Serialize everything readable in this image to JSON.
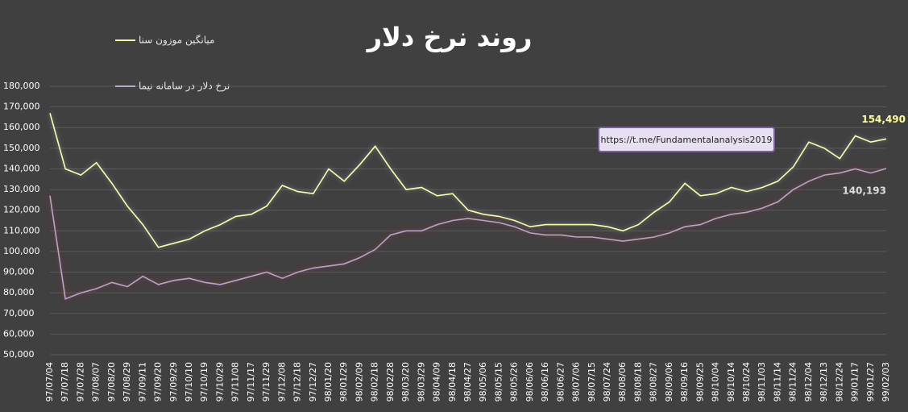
{
  "chart_data": {
    "type": "line",
    "title": "روند نرخ دلار",
    "annotation": "https://t.me/Fundamentalanalysis2019",
    "categories": [
      "97/07/04",
      "97/07/18",
      "97/07/28",
      "97/08/07",
      "97/08/20",
      "97/08/29",
      "97/09/11",
      "97/09/20",
      "97/09/29",
      "97/10/10",
      "97/10/19",
      "97/10/29",
      "97/11/08",
      "97/11/17",
      "97/11/29",
      "97/12/08",
      "97/12/18",
      "97/12/27",
      "98/01/20",
      "98/01/29",
      "98/02/09",
      "98/02/18",
      "98/02/28",
      "98/03/20",
      "98/03/29",
      "98/04/09",
      "98/04/18",
      "98/04/27",
      "98/05/06",
      "98/05/15",
      "98/05/26",
      "98/06/06",
      "98/06/16",
      "98/06/27",
      "98/07/06",
      "98/07/15",
      "98/07/24",
      "98/08/06",
      "98/08/18",
      "98/08/27",
      "98/09/06",
      "98/09/16",
      "98/09/25",
      "98/10/04",
      "98/10/14",
      "98/10/24",
      "98/11/03",
      "98/11/14",
      "98/11/24",
      "98/12/04",
      "98/12/13",
      "98/12/24",
      "99/01/17",
      "99/01/27",
      "99/02/03"
    ],
    "series": [
      {
        "name": "میانگین موزون سنا",
        "color": "#ffff99",
        "values": [
          167000,
          140000,
          137000,
          143000,
          133000,
          122000,
          113000,
          102000,
          104000,
          106000,
          110000,
          113000,
          117000,
          118000,
          122000,
          132000,
          129000,
          128000,
          140000,
          134000,
          142000,
          151000,
          140000,
          130000,
          131000,
          127000,
          128000,
          120000,
          118000,
          117000,
          115000,
          112000,
          113000,
          113000,
          113000,
          113000,
          112000,
          110000,
          113000,
          119000,
          124000,
          133000,
          127000,
          128000,
          131000,
          129000,
          131000,
          134000,
          141000,
          153000,
          150000,
          145000,
          156000,
          153000,
          154490
        ],
        "value_labels": [
          null,
          null,
          null,
          null,
          null,
          null,
          null,
          null,
          null,
          null,
          null,
          null,
          null,
          null,
          null,
          null,
          null,
          null,
          null,
          null,
          null,
          null,
          null,
          null,
          null,
          null,
          null,
          null,
          null,
          null,
          null,
          null,
          null,
          null,
          null,
          null,
          null,
          null,
          null,
          null,
          null,
          null,
          null,
          null,
          null,
          null,
          null,
          null,
          null,
          null,
          null,
          null,
          null,
          null,
          "154,490"
        ]
      },
      {
        "name": "نرخ دلار در سامانه نیما",
        "color": "#b9a3c9",
        "values": [
          127000,
          77000,
          80000,
          82000,
          85000,
          83000,
          88000,
          84000,
          86000,
          87000,
          85000,
          84000,
          86000,
          88000,
          90000,
          87000,
          90000,
          92000,
          93000,
          94000,
          97000,
          101000,
          108000,
          110000,
          110000,
          113000,
          115000,
          116000,
          115000,
          114000,
          112000,
          109000,
          108000,
          108000,
          107000,
          107000,
          106000,
          105000,
          106000,
          107000,
          109000,
          112000,
          113000,
          116000,
          118000,
          119000,
          121000,
          124000,
          130000,
          134000,
          137000,
          138000,
          140000,
          138000,
          140193
        ],
        "value_labels": [
          null,
          null,
          null,
          null,
          null,
          null,
          null,
          null,
          null,
          null,
          null,
          null,
          null,
          null,
          null,
          null,
          null,
          null,
          null,
          null,
          null,
          null,
          null,
          null,
          null,
          null,
          null,
          null,
          null,
          null,
          null,
          null,
          null,
          null,
          null,
          null,
          null,
          null,
          null,
          null,
          null,
          null,
          null,
          null,
          null,
          null,
          null,
          null,
          null,
          null,
          null,
          null,
          null,
          null,
          "140,193"
        ]
      }
    ],
    "ylim": [
      50000,
      180000
    ],
    "yticks": [
      {
        "value": 50000,
        "label": "50,000"
      },
      {
        "value": 60000,
        "label": "60,000"
      },
      {
        "value": 70000,
        "label": "70,000"
      },
      {
        "value": 80000,
        "label": "80,000"
      },
      {
        "value": 90000,
        "label": "90,000"
      },
      {
        "value": 100000,
        "label": "100,000"
      },
      {
        "value": 110000,
        "label": "110,000"
      },
      {
        "value": 120000,
        "label": "120,000"
      },
      {
        "value": 130000,
        "label": "130,000"
      },
      {
        "value": 140000,
        "label": "140,000"
      },
      {
        "value": 150000,
        "label": "150,000"
      },
      {
        "value": 160000,
        "label": "160,000"
      },
      {
        "value": 170000,
        "label": "170,000"
      },
      {
        "value": 180000,
        "label": "180,000"
      }
    ],
    "grid": true
  }
}
